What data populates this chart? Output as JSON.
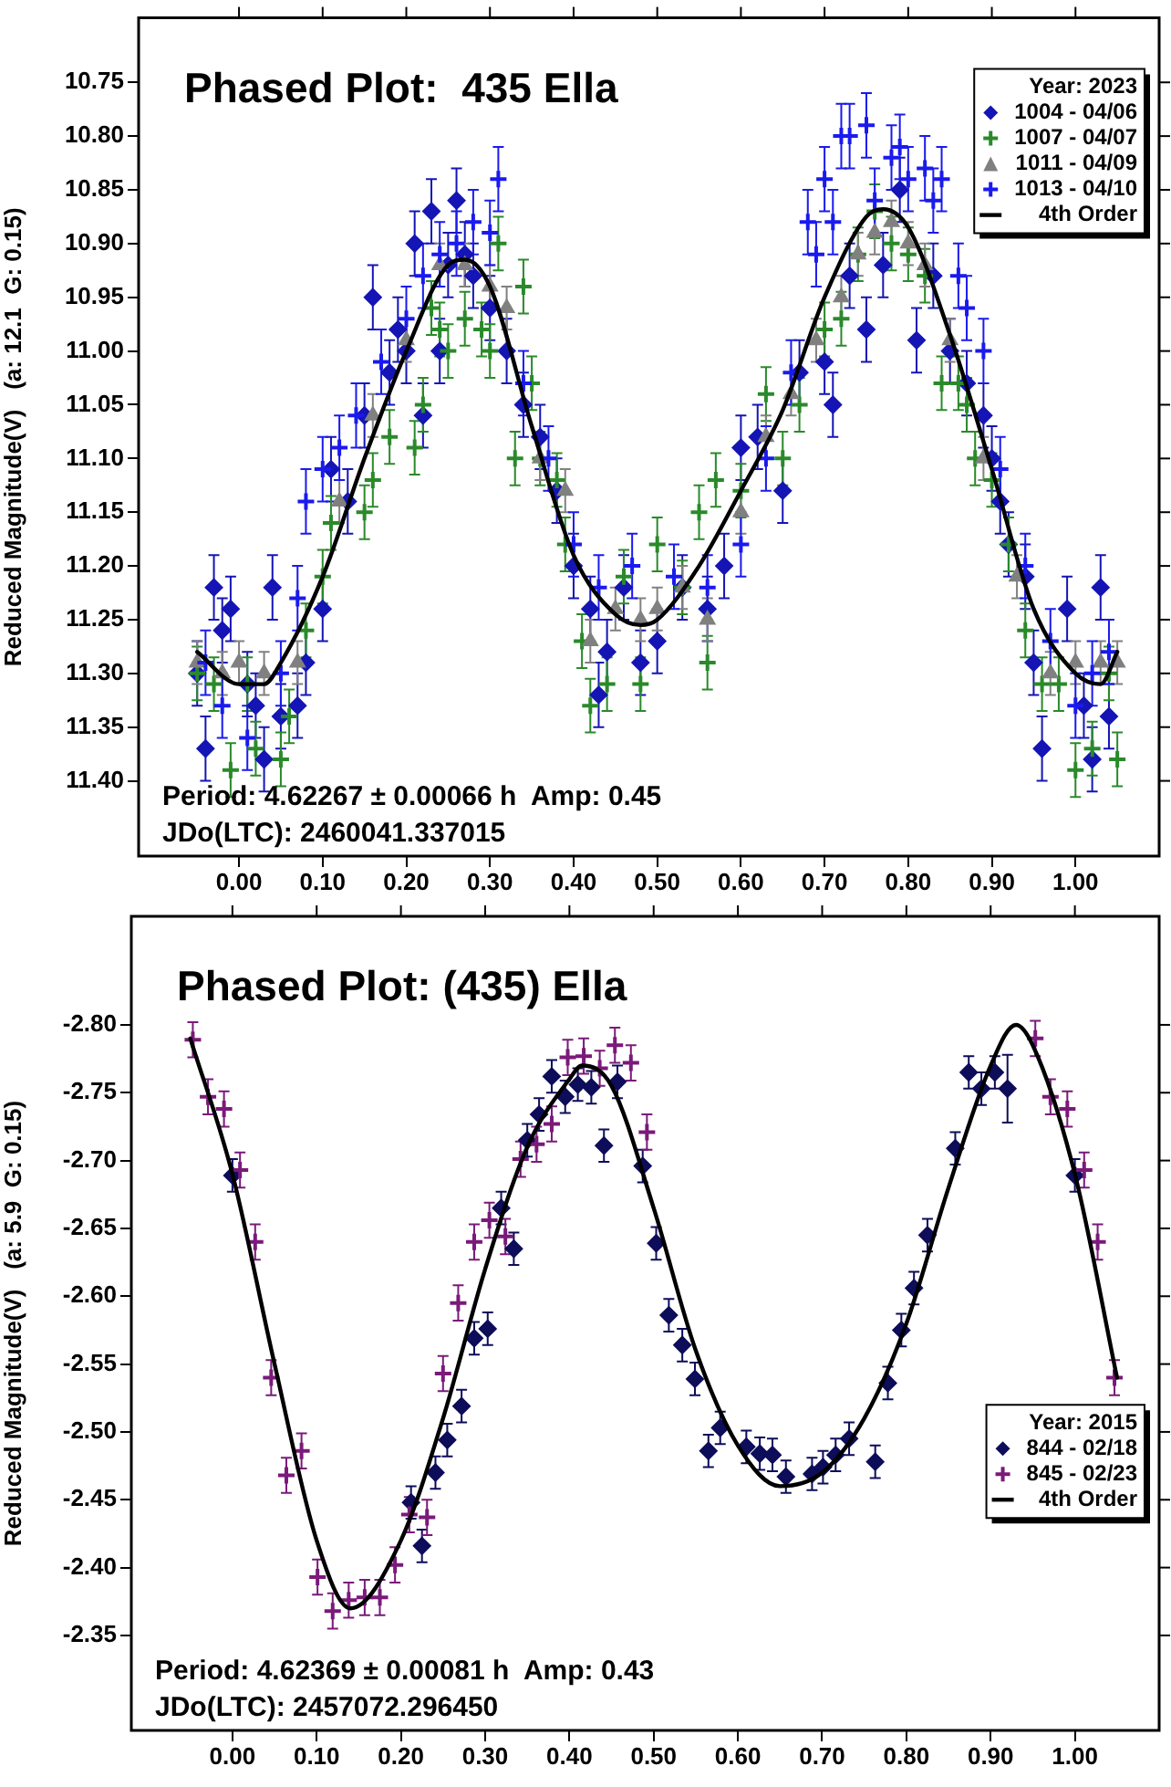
{
  "chart_data": [
    {
      "type": "scatter",
      "title": "Phased Plot:  435 Ella",
      "ylabel": "Reduced Magnitude(V)   (a: 12.1  G: 0.15)",
      "legend_title": "Year: 2023",
      "legend": "top right",
      "grid": false,
      "annotations": [
        "Period: 4.62267 ± 0.00066 h  Amp: 0.45",
        "JDo(LTC): 2460041.337015"
      ],
      "xlim": [
        -0.12,
        1.1
      ],
      "ylim": [
        11.47,
        10.69
      ],
      "xticks": [
        {
          "value": 0,
          "label": "0.00"
        },
        {
          "value": 0.1,
          "label": "0.10"
        },
        {
          "value": 0.2,
          "label": "0.20"
        },
        {
          "value": 0.3,
          "label": "0.30"
        },
        {
          "value": 0.4,
          "label": "0.40"
        },
        {
          "value": 0.5,
          "label": "0.50"
        },
        {
          "value": 0.6,
          "label": "0.60"
        },
        {
          "value": 0.7,
          "label": "0.70"
        },
        {
          "value": 0.8,
          "label": "0.80"
        },
        {
          "value": 0.9,
          "label": "0.90"
        },
        {
          "value": 1,
          "label": "1.00"
        }
      ],
      "yticks": [
        10.75,
        {
          "value": 10.8,
          "label": "10.80"
        },
        10.85,
        {
          "value": 10.9,
          "label": "10.90"
        },
        10.95,
        {
          "value": 11,
          "label": "11.00"
        },
        11.05,
        {
          "value": 11.1,
          "label": "11.10"
        },
        11.15,
        {
          "value": 11.2,
          "label": "11.20"
        },
        11.25,
        {
          "value": 11.3,
          "label": "11.30"
        },
        11.35,
        {
          "value": 11.4,
          "label": "11.40"
        }
      ],
      "series": [
        {
          "name": "1004 - 04/06",
          "color": "#1515b5",
          "marker": "diamond",
          "x": [
            -0.05,
            -0.04,
            -0.03,
            -0.02,
            -0.01,
            0.01,
            0.02,
            0.03,
            0.04,
            0.05,
            0.07,
            0.08,
            0.1,
            0.11,
            0.13,
            0.15,
            0.16,
            0.18,
            0.19,
            0.2,
            0.21,
            0.22,
            0.23,
            0.24,
            0.25,
            0.26,
            0.27,
            0.28,
            0.3,
            0.32,
            0.34,
            0.36,
            0.38,
            0.4,
            0.42,
            0.43,
            0.44,
            0.46,
            0.48,
            0.5,
            0.53,
            0.56,
            0.58,
            0.6,
            0.62,
            0.65,
            0.67,
            0.7,
            0.71,
            0.73,
            0.75,
            0.77,
            0.79,
            0.81,
            0.83,
            0.85,
            0.87,
            0.89,
            0.9,
            0.91,
            0.92,
            0.94,
            0.95,
            0.96,
            0.99,
            1.01,
            1.02,
            1.03,
            1.04
          ],
          "values": [
            11.3,
            11.37,
            11.22,
            11.26,
            11.24,
            11.31,
            11.33,
            11.38,
            11.22,
            11.34,
            11.33,
            11.29,
            11.24,
            11.11,
            11.14,
            11.06,
            10.95,
            11.02,
            10.98,
            11.0,
            10.9,
            11.06,
            10.87,
            11.0,
            10.92,
            10.86,
            10.91,
            10.93,
            10.96,
            11.0,
            11.05,
            11.08,
            11.13,
            11.2,
            11.24,
            11.32,
            11.28,
            11.22,
            11.29,
            11.27,
            11.22,
            11.24,
            11.2,
            11.09,
            11.08,
            11.13,
            11.02,
            11.01,
            11.05,
            10.93,
            10.98,
            10.92,
            10.85,
            10.99,
            10.93,
            11.0,
            11.03,
            11.06,
            11.1,
            11.14,
            11.18,
            11.21,
            11.29,
            11.37,
            11.24,
            11.33,
            11.38,
            11.22,
            11.34
          ],
          "errors": [
            0.03,
            0.03,
            0.03,
            0.03,
            0.03,
            0.03,
            0.03,
            0.03,
            0.03,
            0.03,
            0.03,
            0.03,
            0.03,
            0.03,
            0.03,
            0.03,
            0.03,
            0.03,
            0.03,
            0.03,
            0.03,
            0.03,
            0.03,
            0.03,
            0.03,
            0.03,
            0.03,
            0.03,
            0.03,
            0.03,
            0.03,
            0.03,
            0.03,
            0.03,
            0.03,
            0.03,
            0.03,
            0.03,
            0.03,
            0.03,
            0.03,
            0.03,
            0.03,
            0.03,
            0.03,
            0.03,
            0.03,
            0.03,
            0.03,
            0.03,
            0.03,
            0.03,
            0.03,
            0.03,
            0.03,
            0.03,
            0.03,
            0.03,
            0.03,
            0.03,
            0.03,
            0.03,
            0.03,
            0.03,
            0.03,
            0.03,
            0.03,
            0.03,
            0.03
          ]
        },
        {
          "name": "1007 - 04/07",
          "color": "#2a8a2a",
          "marker": "cross",
          "x": [
            -0.05,
            -0.03,
            -0.01,
            0.01,
            0.02,
            0.05,
            0.06,
            0.08,
            0.1,
            0.11,
            0.15,
            0.16,
            0.18,
            0.21,
            0.22,
            0.23,
            0.24,
            0.25,
            0.27,
            0.29,
            0.3,
            0.31,
            0.33,
            0.34,
            0.35,
            0.36,
            0.38,
            0.39,
            0.41,
            0.42,
            0.44,
            0.46,
            0.48,
            0.5,
            0.53,
            0.55,
            0.56,
            0.57,
            0.6,
            0.63,
            0.65,
            0.67,
            0.7,
            0.72,
            0.74,
            0.76,
            0.78,
            0.8,
            0.82,
            0.84,
            0.86,
            0.87,
            0.88,
            0.9,
            0.92,
            0.94,
            0.96,
            0.98,
            1.0,
            1.02,
            1.04,
            1.05
          ],
          "values": [
            11.3,
            11.31,
            11.39,
            11.31,
            11.37,
            11.38,
            11.34,
            11.26,
            11.21,
            11.16,
            11.15,
            11.12,
            11.08,
            11.09,
            11.05,
            10.96,
            10.98,
            11.0,
            10.97,
            10.98,
            11.0,
            10.9,
            11.1,
            10.94,
            11.03,
            11.1,
            11.12,
            11.18,
            11.27,
            11.33,
            11.31,
            11.21,
            11.31,
            11.18,
            11.22,
            11.15,
            11.29,
            11.12,
            11.13,
            11.04,
            11.1,
            11.05,
            10.98,
            10.97,
            10.91,
            10.87,
            10.9,
            10.91,
            10.93,
            11.03,
            11.03,
            11.05,
            11.1,
            11.12,
            11.18,
            11.26,
            11.31,
            11.31,
            11.39,
            11.37,
            11.3,
            11.38
          ],
          "errors": [
            0.025,
            0.025,
            0.025,
            0.025,
            0.025,
            0.025,
            0.025,
            0.025,
            0.025,
            0.025,
            0.025,
            0.025,
            0.025,
            0.025,
            0.025,
            0.025,
            0.025,
            0.025,
            0.025,
            0.025,
            0.025,
            0.025,
            0.025,
            0.025,
            0.025,
            0.025,
            0.025,
            0.025,
            0.025,
            0.025,
            0.025,
            0.025,
            0.025,
            0.025,
            0.025,
            0.025,
            0.025,
            0.025,
            0.025,
            0.025,
            0.025,
            0.025,
            0.025,
            0.025,
            0.025,
            0.025,
            0.025,
            0.025,
            0.025,
            0.025,
            0.025,
            0.025,
            0.025,
            0.025,
            0.025,
            0.025,
            0.025,
            0.025,
            0.025,
            0.025,
            0.025,
            0.025
          ]
        },
        {
          "name": "1011 - 04/09",
          "color": "#808080",
          "marker": "triangle",
          "x": [
            -0.05,
            -0.02,
            0.0,
            0.03,
            0.07,
            0.12,
            0.16,
            0.2,
            0.24,
            0.27,
            0.3,
            0.32,
            0.36,
            0.39,
            0.42,
            0.45,
            0.48,
            0.5,
            0.53,
            0.56,
            0.6,
            0.63,
            0.66,
            0.69,
            0.72,
            0.74,
            0.76,
            0.78,
            0.8,
            0.82,
            0.85,
            0.89,
            0.93,
            0.97,
            1.0,
            1.03,
            1.05
          ],
          "values": [
            11.29,
            11.3,
            11.29,
            11.3,
            11.29,
            11.14,
            11.06,
            10.99,
            10.92,
            10.92,
            10.94,
            10.96,
            11.1,
            11.13,
            11.27,
            11.24,
            11.25,
            11.24,
            11.22,
            11.25,
            11.15,
            11.08,
            11.04,
            10.99,
            10.95,
            10.91,
            10.89,
            10.88,
            10.9,
            10.92,
            10.99,
            11.1,
            11.21,
            11.3,
            11.29,
            11.29,
            11.29
          ],
          "errors": [
            0.02,
            0.02,
            0.02,
            0.02,
            0.02,
            0.02,
            0.02,
            0.02,
            0.02,
            0.02,
            0.02,
            0.02,
            0.02,
            0.02,
            0.02,
            0.02,
            0.02,
            0.02,
            0.02,
            0.02,
            0.02,
            0.02,
            0.02,
            0.02,
            0.02,
            0.02,
            0.02,
            0.02,
            0.02,
            0.02,
            0.02,
            0.02,
            0.02,
            0.02,
            0.02,
            0.02,
            0.02
          ]
        },
        {
          "name": "1013 - 04/10",
          "color": "#1a1aee",
          "marker": "cross",
          "x": [
            -0.04,
            -0.02,
            0.01,
            0.05,
            0.07,
            0.08,
            0.1,
            0.12,
            0.14,
            0.17,
            0.2,
            0.22,
            0.24,
            0.26,
            0.28,
            0.3,
            0.31,
            0.34,
            0.37,
            0.4,
            0.43,
            0.47,
            0.52,
            0.56,
            0.6,
            0.63,
            0.66,
            0.68,
            0.69,
            0.7,
            0.71,
            0.72,
            0.73,
            0.75,
            0.76,
            0.78,
            0.79,
            0.8,
            0.82,
            0.83,
            0.84,
            0.86,
            0.87,
            0.89,
            0.91,
            0.94,
            0.97,
            1.0,
            1.02,
            1.04
          ],
          "values": [
            11.29,
            11.33,
            11.36,
            11.3,
            11.23,
            11.14,
            11.11,
            11.09,
            11.06,
            11.01,
            10.97,
            10.93,
            10.91,
            10.9,
            10.88,
            10.89,
            10.84,
            11.03,
            11.1,
            11.18,
            11.22,
            11.2,
            11.21,
            11.22,
            11.18,
            11.1,
            11.02,
            10.88,
            10.91,
            10.84,
            10.88,
            10.8,
            10.8,
            10.79,
            10.86,
            10.82,
            10.81,
            10.84,
            10.83,
            10.86,
            10.84,
            10.93,
            10.96,
            11.0,
            11.11,
            11.2,
            11.27,
            11.33,
            11.3,
            11.28
          ],
          "errors": [
            0.03,
            0.03,
            0.03,
            0.03,
            0.03,
            0.03,
            0.03,
            0.03,
            0.03,
            0.03,
            0.03,
            0.03,
            0.03,
            0.03,
            0.03,
            0.03,
            0.03,
            0.03,
            0.03,
            0.03,
            0.03,
            0.03,
            0.03,
            0.03,
            0.03,
            0.03,
            0.03,
            0.03,
            0.03,
            0.03,
            0.03,
            0.03,
            0.03,
            0.03,
            0.03,
            0.03,
            0.03,
            0.03,
            0.03,
            0.03,
            0.03,
            0.03,
            0.03,
            0.03,
            0.03,
            0.03,
            0.03,
            0.03,
            0.03,
            0.03
          ]
        },
        {
          "name": "4th Order",
          "type": "line",
          "color": "#000000",
          "marker": "none",
          "line_style": "solid",
          "x": [
            -0.05,
            0.0,
            0.03,
            0.05,
            0.1,
            0.15,
            0.2,
            0.25,
            0.27,
            0.3,
            0.35,
            0.4,
            0.45,
            0.48,
            0.5,
            0.55,
            0.6,
            0.65,
            0.7,
            0.75,
            0.77,
            0.8,
            0.85,
            0.9,
            0.95,
            1.0,
            1.03,
            1.05
          ],
          "values": [
            11.28,
            11.31,
            11.31,
            11.29,
            11.21,
            11.1,
            11.0,
            10.92,
            10.915,
            10.94,
            11.07,
            11.19,
            11.245,
            11.255,
            11.25,
            11.2,
            11.13,
            11.055,
            10.95,
            10.875,
            10.868,
            10.885,
            10.985,
            11.11,
            11.24,
            11.3,
            11.31,
            11.28
          ]
        }
      ]
    },
    {
      "type": "scatter",
      "title": "Phased Plot: (435) Ella",
      "ylabel": "Reduced Magnitude(V)   (a: 5.9  G: 0.15)",
      "legend_title": "Year: 2015",
      "legend": "right",
      "grid": false,
      "annotations": [
        "Period: 4.62369 ± 0.00081 h  Amp: 0.43",
        "JDo(LTC): 2457072.296450"
      ],
      "xlim": [
        -0.12,
        1.1
      ],
      "ylim": [
        -2.28,
        -2.88
      ],
      "xticks": [
        {
          "value": 0,
          "label": "0.00"
        },
        {
          "value": 0.1,
          "label": "0.10"
        },
        {
          "value": 0.2,
          "label": "0.20"
        },
        {
          "value": 0.3,
          "label": "0.30"
        },
        {
          "value": 0.4,
          "label": "0.40"
        },
        {
          "value": 0.5,
          "label": "0.50"
        },
        {
          "value": 0.6,
          "label": "0.60"
        },
        {
          "value": 0.7,
          "label": "0.70"
        },
        {
          "value": 0.8,
          "label": "0.80"
        },
        {
          "value": 0.9,
          "label": "0.90"
        },
        {
          "value": 1,
          "label": "1.00"
        }
      ],
      "yticks": [
        {
          "value": -2.8,
          "label": "-2.80"
        },
        -2.75,
        {
          "value": -2.7,
          "label": "-2.70"
        },
        -2.65,
        {
          "value": -2.6,
          "label": "-2.60"
        },
        -2.55,
        {
          "value": -2.5,
          "label": "-2.50"
        },
        -2.45,
        {
          "value": -2.4,
          "label": "-2.40"
        },
        -2.35
      ],
      "series": [
        {
          "name": "844 - 02/18",
          "color": "#0d0d5a",
          "marker": "diamond",
          "x": [
            0.0,
            0.212,
            0.225,
            0.241,
            0.255,
            0.272,
            0.287,
            0.303,
            0.319,
            0.334,
            0.35,
            0.364,
            0.379,
            0.395,
            0.41,
            0.426,
            0.441,
            0.457,
            0.487,
            0.503,
            0.518,
            0.534,
            0.549,
            0.565,
            0.579,
            0.61,
            0.626,
            0.641,
            0.657,
            0.688,
            0.701,
            0.716,
            0.732,
            0.763,
            0.778,
            0.794,
            0.809,
            0.825,
            0.858,
            0.874,
            0.889,
            0.905,
            0.92,
            1.0
          ],
          "values": [
            -2.689,
            -2.448,
            -2.416,
            -2.47,
            -2.494,
            -2.519,
            -2.569,
            -2.576,
            -2.665,
            -2.635,
            -2.715,
            -2.734,
            -2.762,
            -2.747,
            -2.756,
            -2.754,
            -2.711,
            -2.758,
            -2.696,
            -2.639,
            -2.586,
            -2.564,
            -2.539,
            -2.486,
            -2.503,
            -2.489,
            -2.484,
            -2.483,
            -2.467,
            -2.469,
            -2.474,
            -2.483,
            -2.495,
            -2.478,
            -2.536,
            -2.575,
            -2.606,
            -2.645,
            -2.709,
            -2.765,
            -2.753,
            -2.765,
            -2.753,
            -2.689
          ],
          "errors": [
            0.012,
            0.012,
            0.012,
            0.012,
            0.012,
            0.012,
            0.012,
            0.012,
            0.012,
            0.012,
            0.012,
            0.012,
            0.012,
            0.012,
            0.012,
            0.012,
            0.012,
            0.012,
            0.012,
            0.012,
            0.012,
            0.012,
            0.012,
            0.012,
            0.012,
            0.012,
            0.012,
            0.012,
            0.012,
            0.012,
            0.012,
            0.012,
            0.012,
            0.012,
            0.012,
            0.012,
            0.012,
            0.012,
            0.012,
            0.012,
            0.012,
            0.012,
            0.025,
            0.012
          ]
        },
        {
          "name": "845 - 02/23",
          "color": "#7a1a7a",
          "marker": "cross",
          "x": [
            -0.047,
            -0.029,
            -0.01,
            0.009,
            0.027,
            0.046,
            0.064,
            0.082,
            0.101,
            0.119,
            0.138,
            0.157,
            0.175,
            0.193,
            0.21,
            0.231,
            0.25,
            0.268,
            0.287,
            0.305,
            0.324,
            0.342,
            0.361,
            0.379,
            0.398,
            0.417,
            0.436,
            0.454,
            0.473,
            0.492,
            0.953,
            0.971,
            0.991,
            1.011,
            1.027,
            1.047
          ],
          "values": [
            -2.789,
            -2.747,
            -2.738,
            -2.693,
            -2.64,
            -2.54,
            -2.468,
            -2.486,
            -2.393,
            -2.368,
            -2.376,
            -2.378,
            -2.378,
            -2.402,
            -2.439,
            -2.437,
            -2.543,
            -2.595,
            -2.64,
            -2.656,
            -2.644,
            -2.701,
            -2.712,
            -2.727,
            -2.776,
            -2.777,
            -2.768,
            -2.785,
            -2.772,
            -2.721,
            -2.79,
            -2.747,
            -2.738,
            -2.693,
            -2.64,
            -2.54
          ],
          "errors": [
            0.013,
            0.013,
            0.013,
            0.013,
            0.013,
            0.013,
            0.013,
            0.013,
            0.013,
            0.013,
            0.013,
            0.013,
            0.013,
            0.013,
            0.013,
            0.013,
            0.013,
            0.013,
            0.013,
            0.013,
            0.013,
            0.013,
            0.013,
            0.013,
            0.013,
            0.013,
            0.013,
            0.013,
            0.013,
            0.013,
            0.013,
            0.013,
            0.013,
            0.013,
            0.013,
            0.013
          ]
        },
        {
          "name": "4th Order",
          "type": "line",
          "color": "#000000",
          "marker": "none",
          "line_style": "solid",
          "x": [
            -0.05,
            0.0,
            0.05,
            0.1,
            0.14,
            0.2,
            0.25,
            0.3,
            0.35,
            0.4,
            0.415,
            0.45,
            0.5,
            0.55,
            0.6,
            0.65,
            0.7,
            0.75,
            0.8,
            0.85,
            0.9,
            0.93,
            0.95,
            1.0,
            1.05
          ],
          "values": [
            -2.79,
            -2.69,
            -2.55,
            -2.42,
            -2.37,
            -2.42,
            -2.51,
            -2.62,
            -2.71,
            -2.76,
            -2.77,
            -2.755,
            -2.665,
            -2.56,
            -2.49,
            -2.46,
            -2.47,
            -2.51,
            -2.58,
            -2.68,
            -2.77,
            -2.8,
            -2.785,
            -2.69,
            -2.54
          ]
        }
      ]
    }
  ]
}
